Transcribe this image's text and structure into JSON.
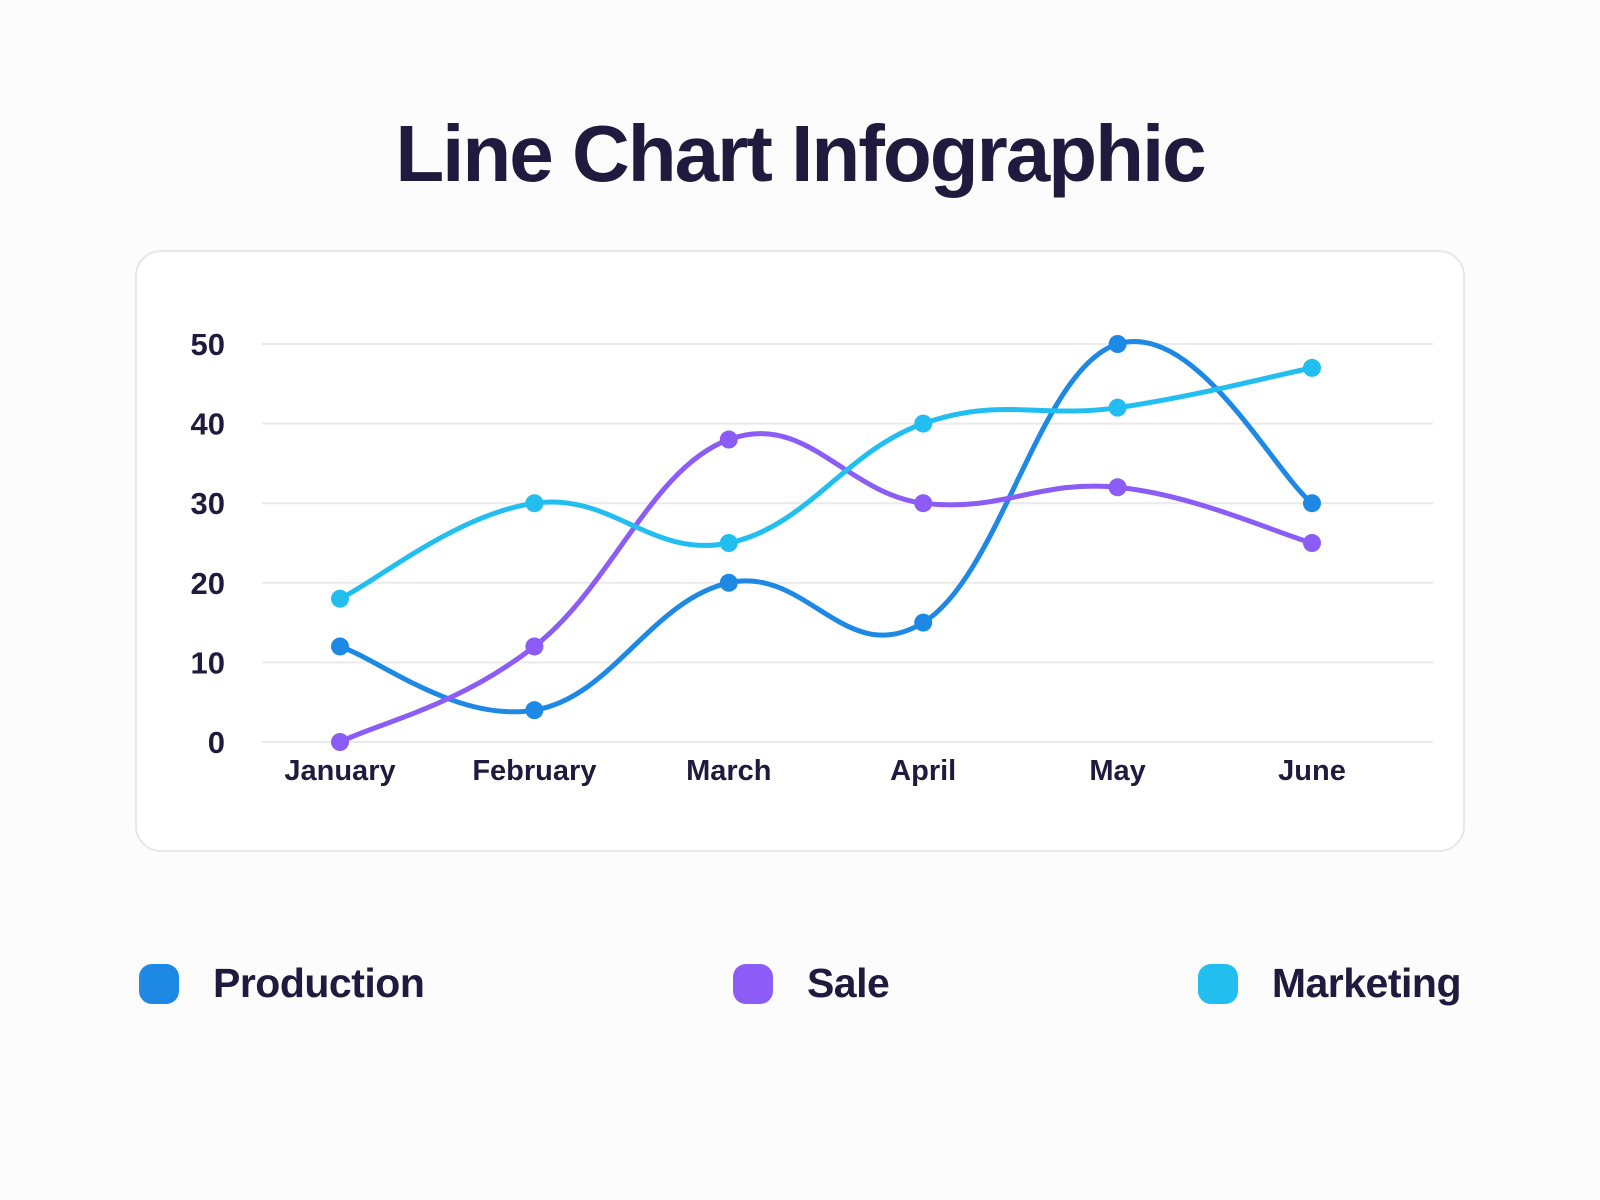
{
  "title": "Line Chart Infographic",
  "colors": {
    "text": "#201A3E",
    "gridline": "#EAEAEC",
    "card_border": "#E7E7EA",
    "card_background": "#FFFFFF",
    "page_background": "#FCFCFC"
  },
  "chart_data": {
    "type": "line",
    "categories": [
      "January",
      "February",
      "March",
      "April",
      "May",
      "June"
    ],
    "series": [
      {
        "name": "Production",
        "color": "#1E88E5",
        "values": [
          12,
          4,
          20,
          15,
          50,
          30
        ]
      },
      {
        "name": "Sale",
        "color": "#8B5CF6",
        "values": [
          0,
          12,
          38,
          30,
          32,
          25
        ]
      },
      {
        "name": "Marketing",
        "color": "#22BEF0",
        "values": [
          18,
          30,
          25,
          40,
          42,
          47
        ]
      }
    ],
    "title": "Line Chart Infographic",
    "xlabel": "",
    "ylabel": "",
    "ylim": [
      0,
      50
    ],
    "yticks": [
      0,
      10,
      20,
      30,
      40,
      50
    ],
    "grid": "horizontal",
    "legend_position": "bottom",
    "curve": "smooth",
    "point_style": "filled-circle"
  }
}
